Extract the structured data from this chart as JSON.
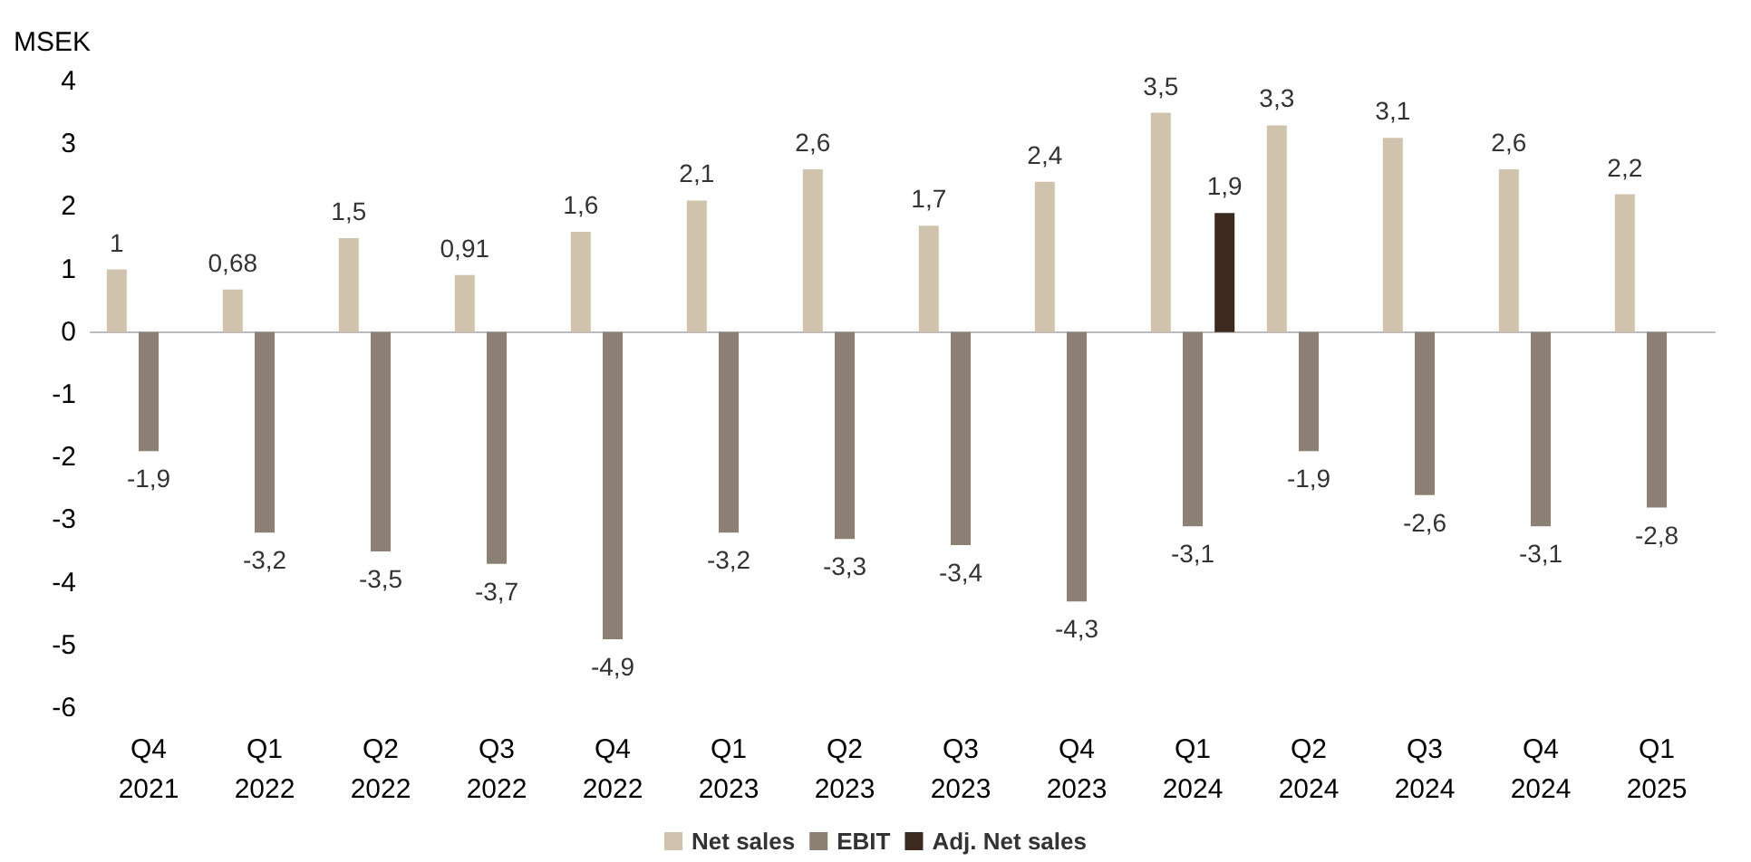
{
  "chart_data": {
    "type": "bar",
    "ylabel": "MSEK",
    "categories": [
      "Q4\n2021",
      "Q1\n2022",
      "Q2\n2022",
      "Q3\n2022",
      "Q4\n2022",
      "Q1\n2023",
      "Q2\n2023",
      "Q3\n2023",
      "Q4\n2023",
      "Q1\n2024",
      "Q2\n2024",
      "Q3\n2024",
      "Q4\n2024",
      "Q1\n2025"
    ],
    "series": [
      {
        "name": "Net sales",
        "color": "#cfc3ae",
        "values": [
          1,
          0.68,
          1.5,
          0.91,
          1.6,
          2.1,
          2.6,
          1.7,
          2.4,
          3.5,
          3.3,
          3.1,
          2.6,
          2.2
        ],
        "value_labels": [
          "1",
          "0,68",
          "1,5",
          "0,91",
          "1,6",
          "2,1",
          "2,6",
          "1,7",
          "2,4",
          "3,5",
          "3,3",
          "3,1",
          "2,6",
          "2,2"
        ]
      },
      {
        "name": "EBIT",
        "color": "#8c8075",
        "values": [
          -1.9,
          -3.2,
          -3.5,
          -3.7,
          -4.9,
          -3.2,
          -3.3,
          -3.4,
          -4.3,
          -3.1,
          -1.9,
          -2.6,
          -3.1,
          -2.8
        ],
        "value_labels": [
          "-1,9",
          "-3,2",
          "-3,5",
          "-3,7",
          "-4,9",
          "-3,2",
          "-3,3",
          "-3,4",
          "-4,3",
          "-3,1",
          "-1,9",
          "-2,6",
          "-3,1",
          "-2,8"
        ]
      },
      {
        "name": "Adj. Net sales",
        "color": "#3d2a1e",
        "values": [
          null,
          null,
          null,
          null,
          null,
          null,
          null,
          null,
          null,
          1.9,
          null,
          null,
          null,
          null
        ],
        "value_labels": [
          null,
          null,
          null,
          null,
          null,
          null,
          null,
          null,
          null,
          "1,9",
          null,
          null,
          null,
          null
        ]
      }
    ],
    "ylim": [
      -6,
      4
    ],
    "yticks": [
      -6,
      -5,
      -4,
      -3,
      -2,
      -1,
      0,
      1,
      2,
      3,
      4
    ],
    "legend": "bottom"
  }
}
